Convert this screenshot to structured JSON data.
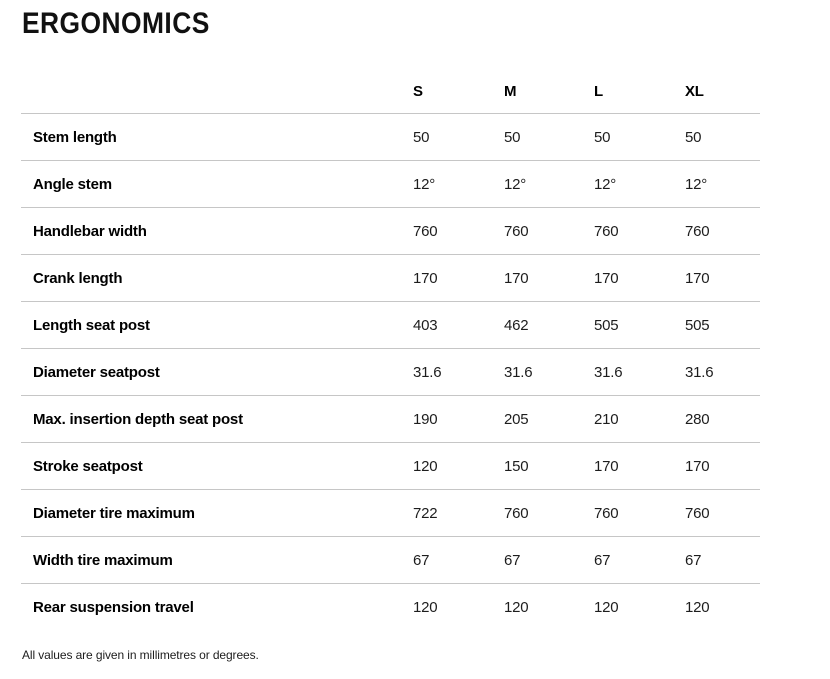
{
  "page": {
    "title": "ERGONOMICS",
    "footnote": "All values are given in millimetres or degrees."
  },
  "table": {
    "columns": [
      "S",
      "M",
      "L",
      "XL"
    ],
    "rows": [
      {
        "label": "Stem length",
        "values": [
          "50",
          "50",
          "50",
          "50"
        ]
      },
      {
        "label": "Angle stem",
        "values": [
          "12°",
          "12°",
          "12°",
          "12°"
        ]
      },
      {
        "label": "Handlebar width",
        "values": [
          "760",
          "760",
          "760",
          "760"
        ]
      },
      {
        "label": "Crank length",
        "values": [
          "170",
          "170",
          "170",
          "170"
        ]
      },
      {
        "label": "Length seat post",
        "values": [
          "403",
          "462",
          "505",
          "505"
        ]
      },
      {
        "label": "Diameter seatpost",
        "values": [
          "31.6",
          "31.6",
          "31.6",
          "31.6"
        ]
      },
      {
        "label": "Max. insertion depth seat post",
        "values": [
          "190",
          "205",
          "210",
          "280"
        ]
      },
      {
        "label": "Stroke seatpost",
        "values": [
          "120",
          "150",
          "170",
          "170"
        ]
      },
      {
        "label": "Diameter tire maximum",
        "values": [
          "722",
          "760",
          "760",
          "760"
        ]
      },
      {
        "label": "Width tire maximum",
        "values": [
          "67",
          "67",
          "67",
          "67"
        ]
      },
      {
        "label": "Rear suspension travel",
        "values": [
          "120",
          "120",
          "120",
          "120"
        ]
      }
    ]
  },
  "colors": {
    "divider": "#c6c6c6",
    "title_text": "#000000",
    "value_text": "#1d1d1d",
    "background": "#ffffff"
  }
}
